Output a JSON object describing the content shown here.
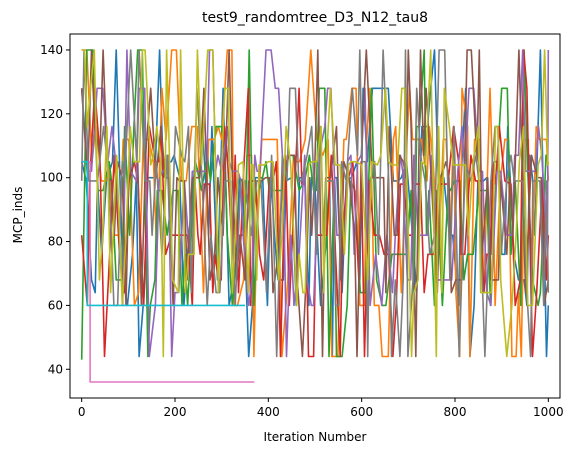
{
  "chart_data": {
    "type": "line",
    "title": "test9_randomtree_D3_N12_tau8",
    "xlabel": "Iteration Number",
    "ylabel": "MCP_inds",
    "xlim": [
      -25,
      1025
    ],
    "ylim": [
      31,
      145
    ],
    "x_ticks": [
      0,
      200,
      400,
      600,
      800,
      1000
    ],
    "y_ticks": [
      40,
      60,
      80,
      100,
      120,
      140
    ],
    "value_levels": [
      44,
      60,
      64,
      68,
      76,
      82,
      99,
      105,
      107,
      116,
      128,
      140
    ],
    "grid": false,
    "legend": "none",
    "series": [
      {
        "color": "#1f77b4",
        "start": 105,
        "x_end": 1000,
        "mean": 100
      },
      {
        "color": "#ff7f0e",
        "start": 140,
        "x_end": 1000,
        "mean": 112
      },
      {
        "color": "#2ca02c",
        "start": 43,
        "x_end": 1000,
        "mean": 96
      },
      {
        "color": "#d62728",
        "start": 82,
        "x_end": 1000,
        "mean": 98
      },
      {
        "color": "#9467bd",
        "start": 128,
        "x_end": 1000,
        "mean": 102
      },
      {
        "color": "#8c564b",
        "start": 128,
        "x_end": 1000,
        "mean": 100
      },
      {
        "color": "#e377c2",
        "x": [
          0,
          18,
          18,
          370
        ],
        "y": [
          105,
          105,
          36,
          36
        ]
      },
      {
        "color": "#7f7f7f",
        "start": 99,
        "x_end": 1000,
        "mean": 99
      },
      {
        "color": "#bcbd22",
        "start": 140,
        "x_end": 1000,
        "mean": 104
      },
      {
        "color": "#17becf",
        "x": [
          0,
          12,
          12,
          350
        ],
        "y": [
          105,
          105,
          60,
          60
        ]
      }
    ]
  }
}
